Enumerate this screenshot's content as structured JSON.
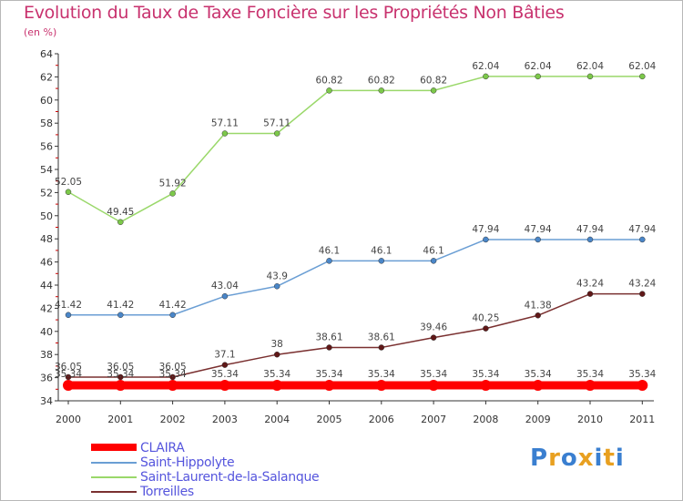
{
  "header": {
    "title": "Evolution du Taux de Taxe Foncière sur les Propriétés Non Bâties",
    "subtitle": "(en %)"
  },
  "logo": {
    "text": "Proxiti",
    "letter_colors": [
      "#3a7fd0",
      "#e8a020",
      "#3a7fd0",
      "#e8a020",
      "#3a7fd0",
      "#e8a020",
      "#3a7fd0"
    ]
  },
  "chart_data": {
    "type": "line",
    "title": "Evolution du Taux de Taxe Foncière sur les Propriétés Non Bâties",
    "ylabel": "(en %)",
    "xlabel": "",
    "x": [
      "2000",
      "2001",
      "2002",
      "2003",
      "2004",
      "2005",
      "2006",
      "2007",
      "2008",
      "2009",
      "2010",
      "2011"
    ],
    "ylim": [
      34,
      64
    ],
    "yticks": [
      34,
      36,
      38,
      40,
      42,
      44,
      46,
      48,
      50,
      52,
      54,
      56,
      58,
      60,
      62,
      64
    ],
    "grid": false,
    "legend_position": "bottom-left",
    "series": [
      {
        "name": "CLAIRA",
        "color": "#ff0000",
        "thick": true,
        "values": [
          35.34,
          35.34,
          35.34,
          35.34,
          35.34,
          35.34,
          35.34,
          35.34,
          35.34,
          35.34,
          35.34,
          35.34
        ],
        "labels": [
          "35.34",
          "35.34",
          "35.34",
          "35.34",
          "35.34",
          "35.34",
          "35.34",
          "35.34",
          "35.34",
          "35.34",
          "35.34",
          "35.34"
        ]
      },
      {
        "name": "Saint-Hippolyte",
        "color": "#6a9ed4",
        "marker": "#4a86c8",
        "values": [
          41.42,
          41.42,
          41.42,
          43.04,
          43.9,
          46.1,
          46.1,
          46.1,
          47.94,
          47.94,
          47.94,
          47.94
        ],
        "labels": [
          "41.42",
          "41.42",
          "41.42",
          "43.04",
          "43.9",
          "46.1",
          "46.1",
          "46.1",
          "47.94",
          "47.94",
          "47.94",
          "47.94"
        ]
      },
      {
        "name": "Saint-Laurent-de-la-Salanque",
        "color": "#9ad86a",
        "marker": "#7cc84a",
        "values": [
          52.05,
          49.45,
          51.92,
          57.11,
          57.11,
          60.82,
          60.82,
          60.82,
          62.04,
          62.04,
          62.04,
          62.04
        ],
        "labels": [
          "52.05",
          "49.45",
          "51.92",
          "57.11",
          "57.11",
          "60.82",
          "60.82",
          "60.82",
          "62.04",
          "62.04",
          "62.04",
          "62.04"
        ]
      },
      {
        "name": "Torreilles",
        "color": "#7a3030",
        "marker": "#601818",
        "values": [
          36.05,
          36.05,
          36.05,
          37.1,
          38,
          38.61,
          38.61,
          39.46,
          40.25,
          41.38,
          43.24,
          43.24
        ],
        "labels": [
          "36.05",
          "36.05",
          "36.05",
          "37.1",
          "38",
          "38.61",
          "38.61",
          "39.46",
          "40.25",
          "41.38",
          "43.24",
          "43.24"
        ]
      }
    ]
  }
}
